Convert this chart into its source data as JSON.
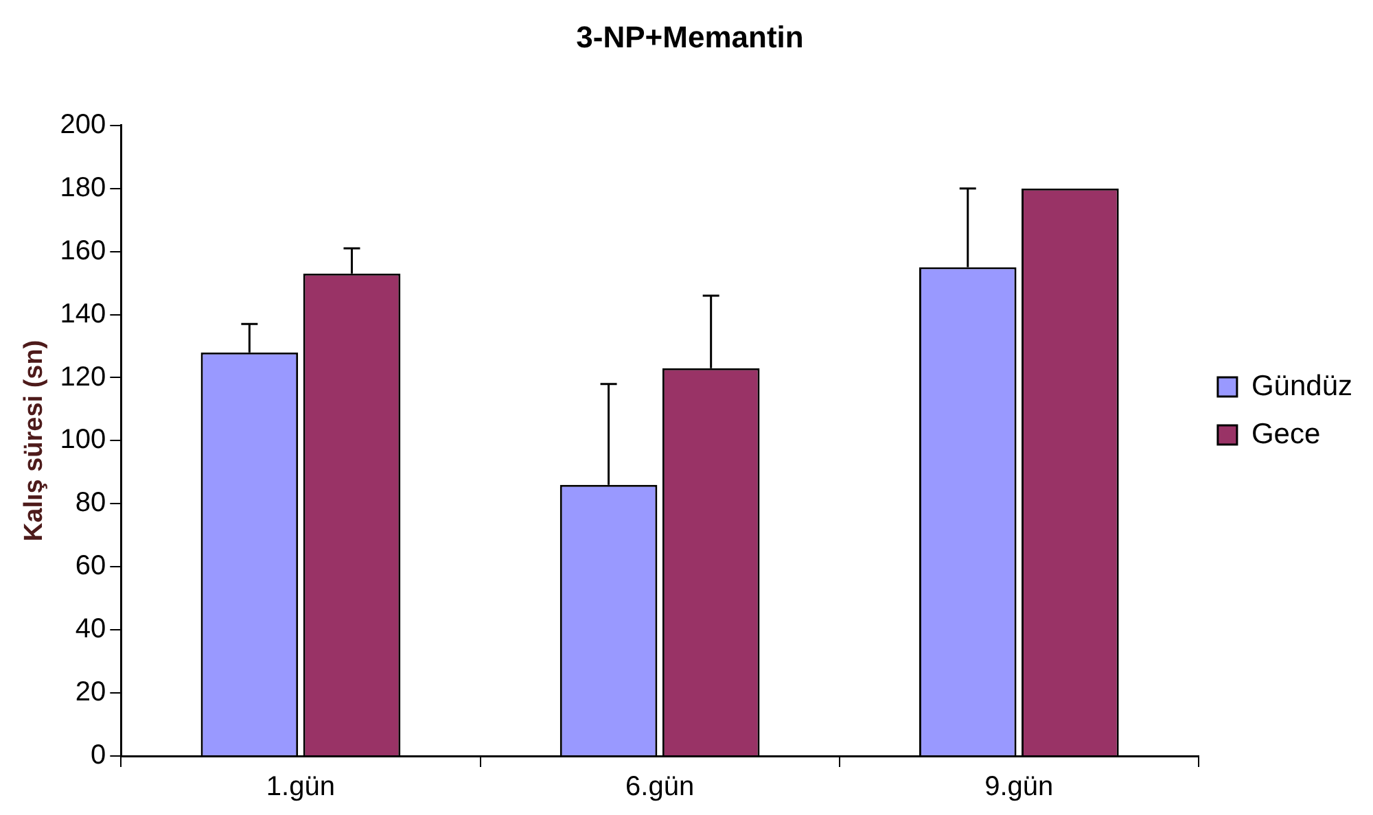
{
  "chart_data": {
    "type": "bar",
    "title": "3-NP+Memantin",
    "ylabel": "Kalış süresi (sn)",
    "categories": [
      "1.gün",
      "6.gün",
      "9.gün"
    ],
    "series": [
      {
        "name": "Gündüz",
        "color": "#9999ff",
        "values": [
          128,
          86,
          155
        ],
        "errors": [
          [
            128,
            137
          ],
          [
            86,
            118
          ],
          [
            155,
            180
          ]
        ]
      },
      {
        "name": "Gece",
        "color": "#993366",
        "values": [
          153,
          123,
          180
        ],
        "errors": [
          [
            153,
            161
          ],
          [
            123,
            146
          ],
          null
        ]
      }
    ],
    "ylim": [
      0,
      200
    ],
    "yticks": [
      0,
      20,
      40,
      60,
      80,
      100,
      120,
      140,
      160,
      180,
      200
    ],
    "grid": false,
    "legend": "right"
  }
}
